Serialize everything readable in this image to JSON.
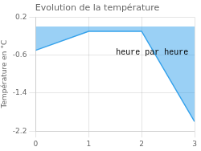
{
  "chart_data": {
    "type": "area",
    "title": "Evolution de la température",
    "ylabel": "Température en °C",
    "x": [
      0,
      1,
      2,
      3
    ],
    "values": [
      -0.5,
      -0.1,
      -0.1,
      -2.0
    ],
    "xlim": [
      0,
      3
    ],
    "ylim": [
      -2.2,
      0.2
    ],
    "xticks": [
      0,
      1,
      2,
      3
    ],
    "yticks": [
      0.2,
      -0.6,
      -1.4,
      -2.2
    ],
    "grid": true,
    "annotations": [
      {
        "text": "heure par heure",
        "x": 2.2,
        "y": -0.55
      }
    ]
  }
}
